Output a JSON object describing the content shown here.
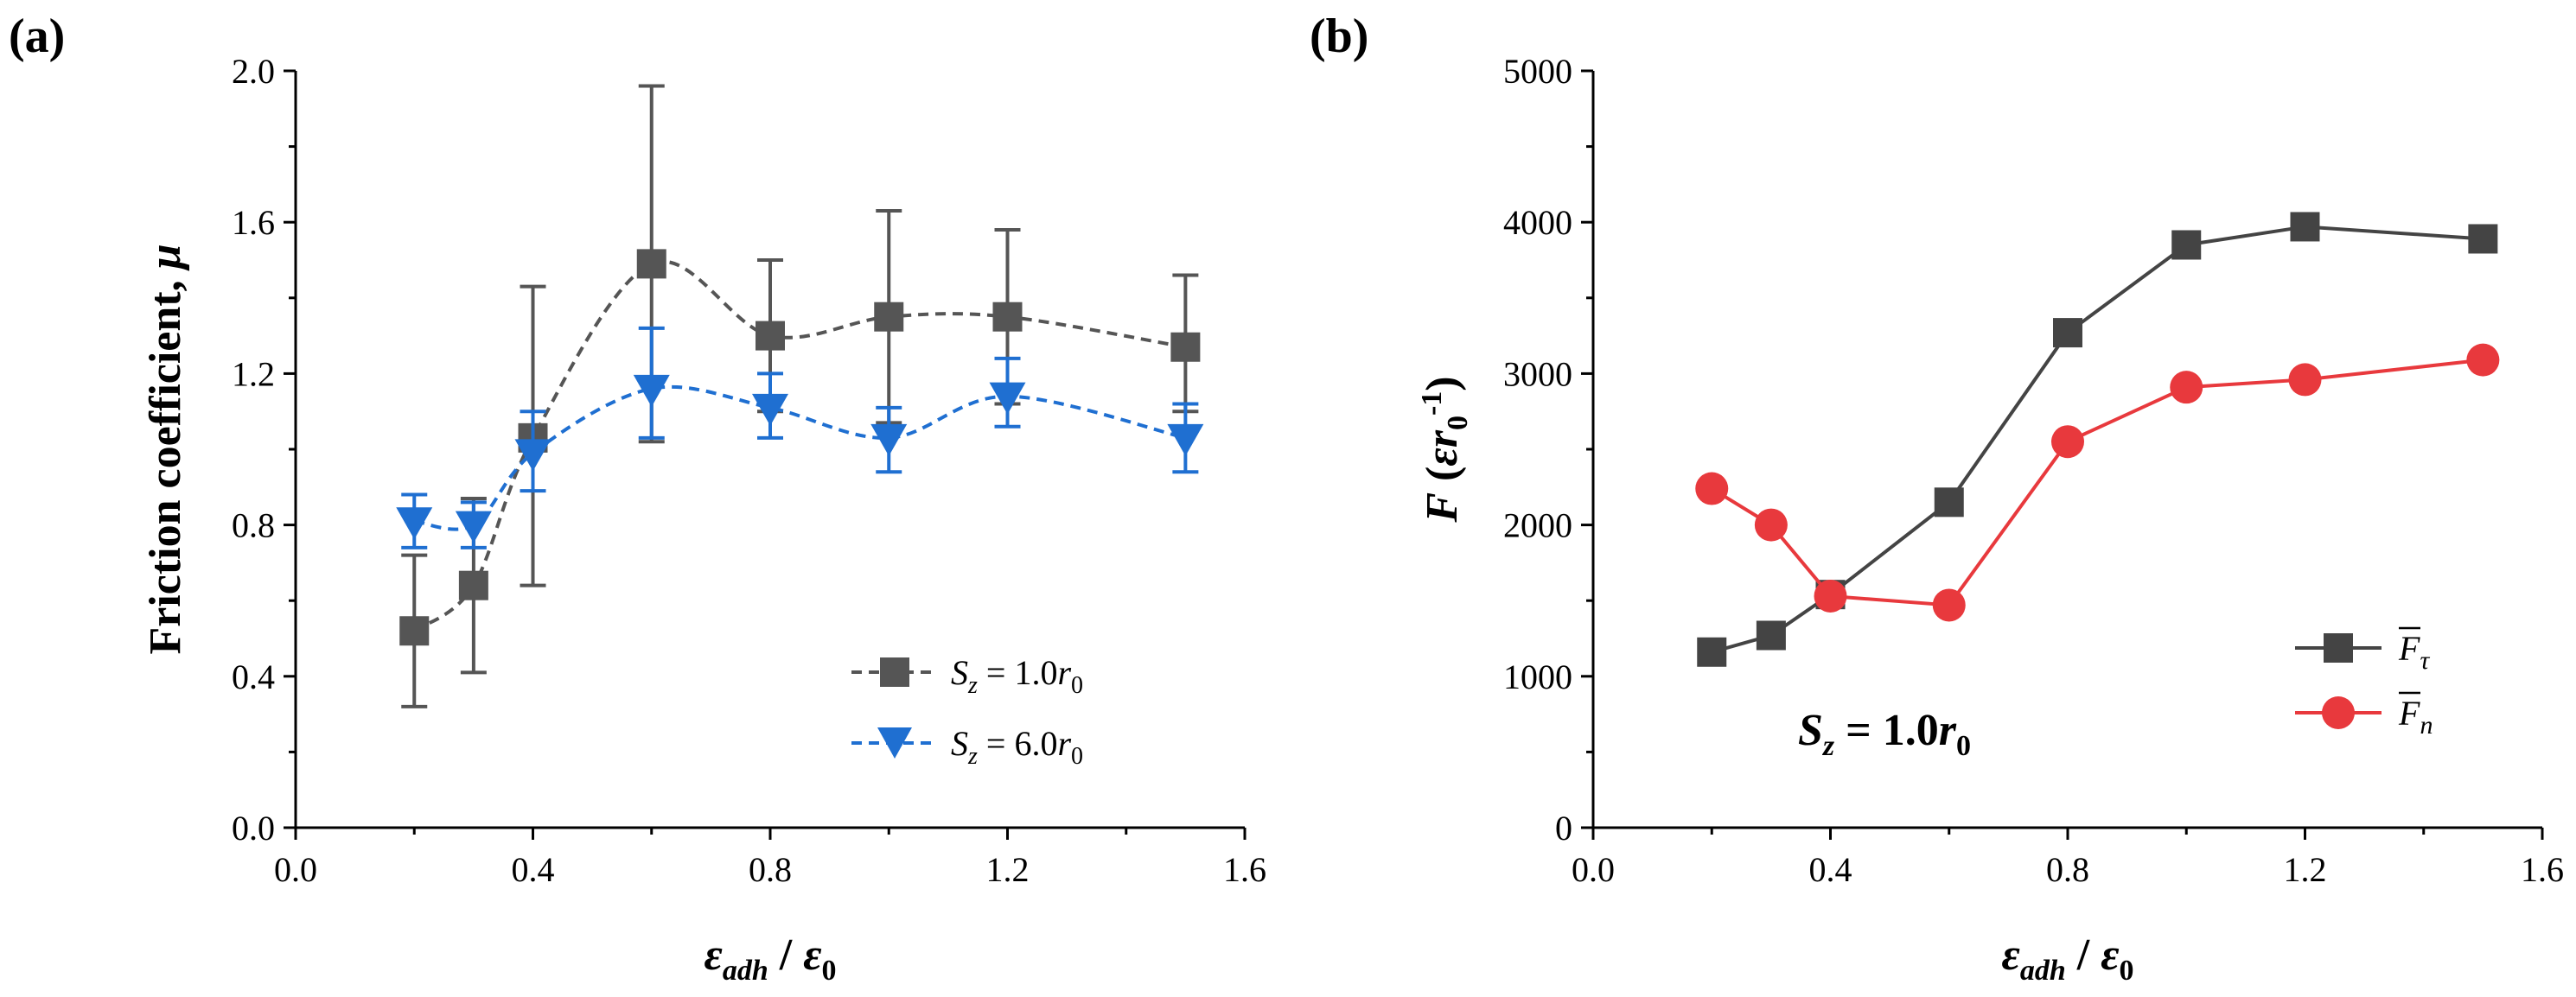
{
  "chart_data": [
    {
      "panel_label": "(a)",
      "type": "line",
      "xlabel": "εadh / ε0",
      "ylabel": "Friction coefficient, μ",
      "xlim": [
        0.0,
        1.6
      ],
      "ylim": [
        0.0,
        2.0
      ],
      "xticks": [
        "0.0",
        "0.4",
        "0.8",
        "1.2",
        "1.6"
      ],
      "yticks": [
        "0.0",
        "0.4",
        "0.8",
        "1.2",
        "1.6",
        "2.0"
      ],
      "legend_position": "bottom-right",
      "series": [
        {
          "name": "Sz = 1.0r0",
          "legend_label": "Sz = 1.0r0",
          "marker": "square",
          "color": "#555555",
          "line_style": "dashed-smooth",
          "x": [
            0.2,
            0.3,
            0.4,
            0.6,
            0.8,
            1.0,
            1.2,
            1.5
          ],
          "y": [
            0.52,
            0.64,
            1.03,
            1.49,
            1.3,
            1.35,
            1.35,
            1.27
          ],
          "err_low": [
            0.32,
            0.41,
            0.64,
            1.02,
            1.1,
            1.07,
            1.12,
            1.1
          ],
          "err_high": [
            0.72,
            0.87,
            1.43,
            1.96,
            1.5,
            1.63,
            1.58,
            1.46
          ]
        },
        {
          "name": "Sz = 6.0r0",
          "legend_label": "Sz = 6.0r0",
          "marker": "triangle-down",
          "color": "#1f6fd1",
          "line_style": "dashed-smooth",
          "x": [
            0.2,
            0.3,
            0.4,
            0.6,
            0.8,
            1.0,
            1.2,
            1.5
          ],
          "y": [
            0.81,
            0.8,
            0.99,
            1.16,
            1.11,
            1.03,
            1.14,
            1.03
          ],
          "err_low": [
            0.74,
            0.74,
            0.89,
            1.03,
            1.03,
            0.94,
            1.06,
            0.94
          ],
          "err_high": [
            0.88,
            0.86,
            1.1,
            1.32,
            1.2,
            1.11,
            1.24,
            1.12
          ]
        }
      ]
    },
    {
      "panel_label": "(b)",
      "type": "line",
      "xlabel": "εadh / ε0",
      "ylabel": "F (εr0-1)",
      "xlim": [
        0.0,
        1.6
      ],
      "ylim": [
        0,
        5000
      ],
      "xticks": [
        "0.0",
        "0.4",
        "0.8",
        "1.2",
        "1.6"
      ],
      "yticks": [
        "0",
        "1000",
        "2000",
        "3000",
        "4000",
        "5000"
      ],
      "legend_position": "bottom-right",
      "annotation": "Sz = 1.0r0",
      "series": [
        {
          "name": "F̄τ",
          "legend_label": "F̄τ",
          "marker": "square",
          "color": "#444444",
          "line_style": "solid",
          "x": [
            0.2,
            0.3,
            0.4,
            0.6,
            0.8,
            1.0,
            1.2,
            1.5
          ],
          "y": [
            1160,
            1270,
            1540,
            2150,
            3270,
            3850,
            3970,
            3890
          ]
        },
        {
          "name": "F̄n",
          "legend_label": "F̄n",
          "marker": "circle",
          "color": "#e8393d",
          "line_style": "solid",
          "x": [
            0.2,
            0.3,
            0.4,
            0.6,
            0.8,
            1.0,
            1.2,
            1.5
          ],
          "y": [
            2240,
            2000,
            1530,
            1470,
            2550,
            2910,
            2960,
            3090
          ]
        }
      ]
    }
  ]
}
